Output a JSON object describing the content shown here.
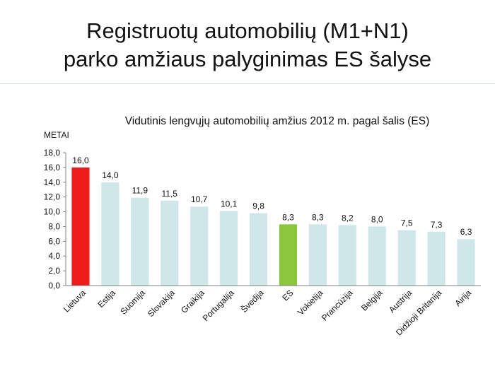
{
  "slide": {
    "title_line1": "Registruotų automobilių (M1+N1)",
    "title_line2": "parko amžiaus palyginimas ES šalyse"
  },
  "chart_data": {
    "type": "bar",
    "title": "Vidutinis lengvųjų automobilių amžius 2012 m. pagal šalis (ES)",
    "ylabel": "METAI",
    "xlabel": "",
    "ylim": [
      0,
      18
    ],
    "yticks": [
      "0,0",
      "2,0",
      "4,0",
      "6,0",
      "8,0",
      "10,0",
      "12,0",
      "14,0",
      "16,0",
      "18,0"
    ],
    "grid": false,
    "categories": [
      "Lietuva",
      "Estija",
      "Suomija",
      "Slovakija",
      "Graikija",
      "Portugalija",
      "Švedija",
      "ES",
      "Vokietija",
      "Prancūzija",
      "Belgija",
      "Austrija",
      "Didžioji Britanija",
      "Airija"
    ],
    "values": [
      16.0,
      14.0,
      11.9,
      11.5,
      10.7,
      10.1,
      9.8,
      8.3,
      8.3,
      8.2,
      8.0,
      7.5,
      7.3,
      6.3
    ],
    "value_labels": [
      "16,0",
      "14,0",
      "11,9",
      "11,5",
      "10,7",
      "10,1",
      "9,8",
      "8,3",
      "8,3",
      "8,2",
      "8,0",
      "7,5",
      "7,3",
      "6,3"
    ],
    "colors": {
      "default": "#cfe7e8",
      "highlight_lietuva": "#ee1b1b",
      "highlight_es": "#8cc63f",
      "axis": "#808080"
    },
    "bar_colors": [
      "#ee1b1b",
      "#cfe7e8",
      "#cfe7e8",
      "#cfe7e8",
      "#cfe7e8",
      "#cfe7e8",
      "#cfe7e8",
      "#8cc63f",
      "#cfe7e8",
      "#cfe7e8",
      "#cfe7e8",
      "#cfe7e8",
      "#cfe7e8",
      "#cfe7e8"
    ]
  }
}
